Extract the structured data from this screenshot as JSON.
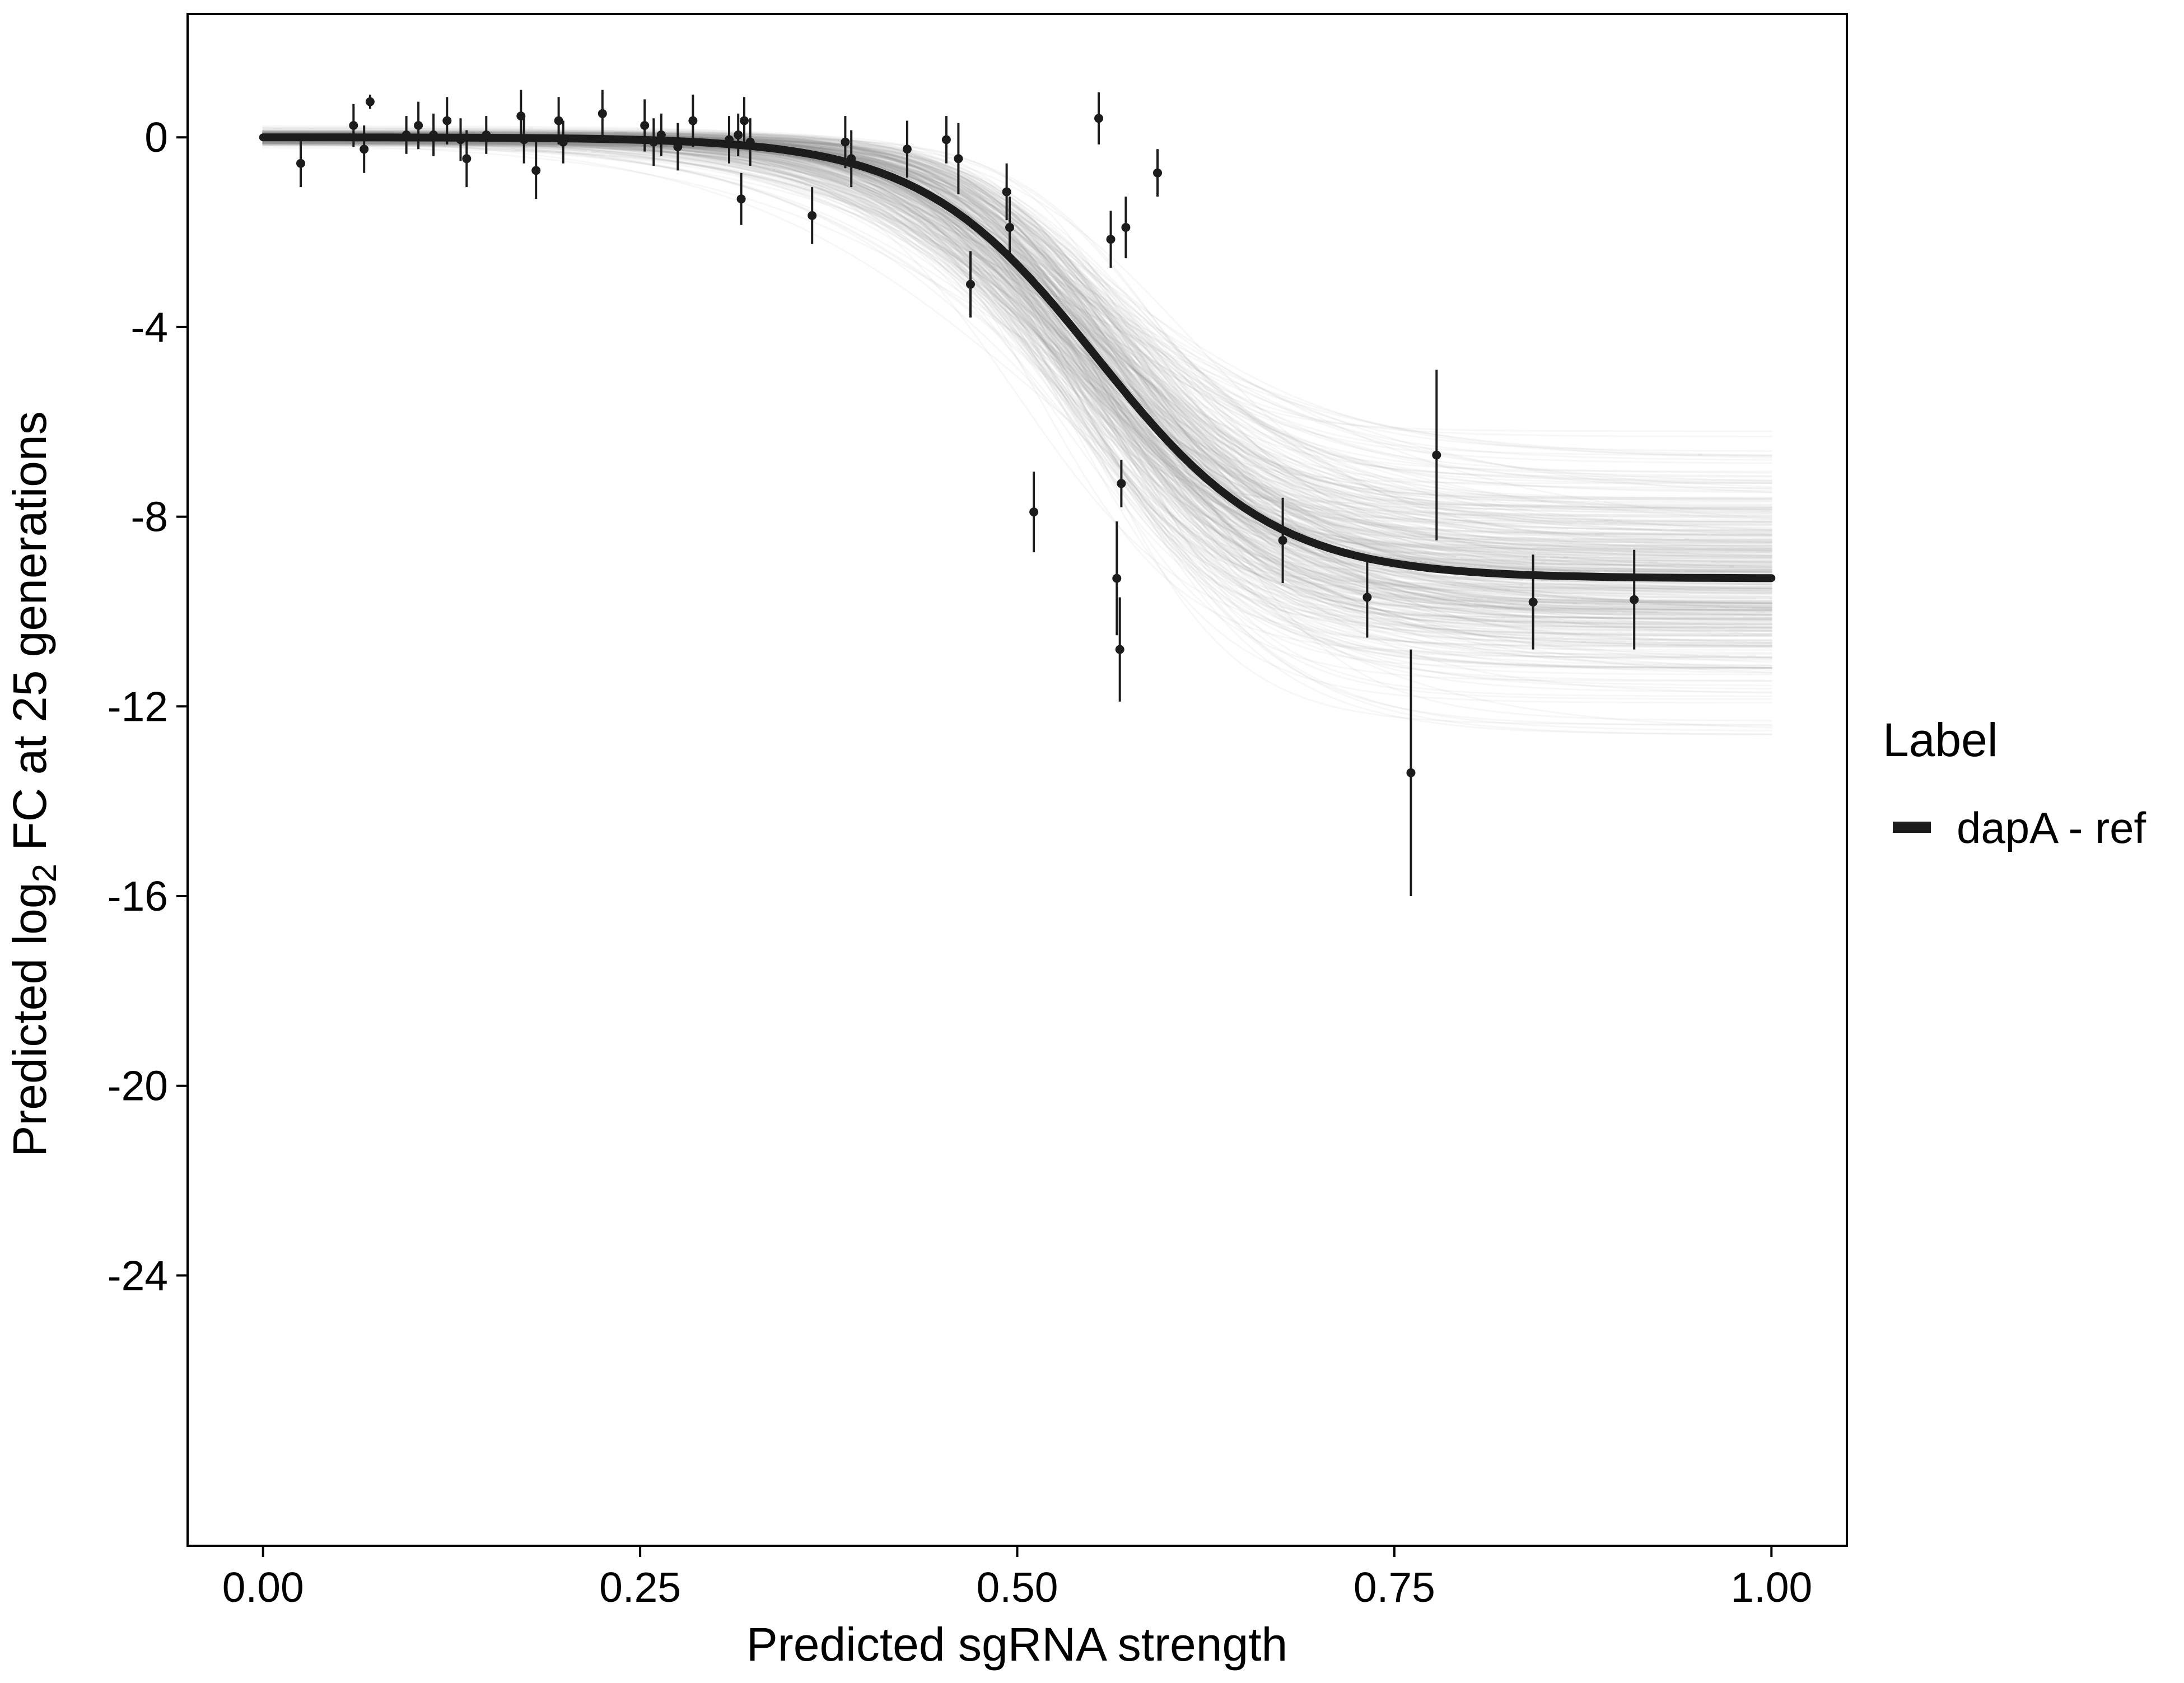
{
  "chart_data": {
    "type": "line",
    "title": "",
    "xlabel": "Predicted sgRNA strength",
    "ylabel_pre": "Predicted  log",
    "ylabel_sub": "2",
    "ylabel_post": " FC at 25 generations",
    "x_ticks": {
      "values": [
        0,
        0.25,
        0.5,
        0.75,
        1.0
      ],
      "labels": [
        "0.00",
        "0.25",
        "0.50",
        "0.75",
        "1.00"
      ]
    },
    "y_ticks": {
      "values": [
        0,
        -4,
        -8,
        -12,
        -16,
        -20,
        -24
      ],
      "labels": [
        "0",
        "-4",
        "-8",
        "-12",
        "-16",
        "-20",
        "-24"
      ]
    },
    "x_range": [
      -0.05,
      1.05
    ],
    "y_range": [
      -29.7,
      2.6
    ],
    "grid": "off",
    "legend_position": "right",
    "fit_curve": {
      "model": "sigmoid",
      "upper_asymptote": 0,
      "lower_asymptote": -9.3,
      "midpoint": 0.553,
      "slope": 17,
      "x_domain": [
        0,
        1
      ],
      "color": "#1c1c1c",
      "width": 14
    },
    "uncertainty_curves": {
      "n_curves": 400,
      "lower_asymptote_mean": -9.3,
      "lower_asymptote_sd": 1.15,
      "lower_asymptote_clamp": [
        -12.6,
        -6.2
      ],
      "midpoint_mean": 0.553,
      "midpoint_sd": 0.02,
      "slope_mean": 17,
      "slope_sd": 3.5,
      "upper_asymptote_sd": 0.07,
      "color": "#8c8c8c",
      "opacity": 0.07,
      "width": 3
    },
    "point_color": "#1c1c1c",
    "points": [
      {
        "x": 0.025,
        "y": -0.55,
        "e": 0.5
      },
      {
        "x": 0.06,
        "y": 0.25,
        "e": 0.45
      },
      {
        "x": 0.067,
        "y": -0.25,
        "e": 0.5
      },
      {
        "x": 0.071,
        "y": 0.75,
        "e": 0.15
      },
      {
        "x": 0.095,
        "y": 0.05,
        "e": 0.4
      },
      {
        "x": 0.103,
        "y": 0.25,
        "e": 0.5
      },
      {
        "x": 0.113,
        "y": 0.05,
        "e": 0.45
      },
      {
        "x": 0.122,
        "y": 0.35,
        "e": 0.5
      },
      {
        "x": 0.131,
        "y": -0.05,
        "e": 0.45
      },
      {
        "x": 0.135,
        "y": -0.45,
        "e": 0.6
      },
      {
        "x": 0.148,
        "y": 0.05,
        "e": 0.4
      },
      {
        "x": 0.171,
        "y": 0.45,
        "e": 0.55
      },
      {
        "x": 0.173,
        "y": -0.05,
        "e": 0.5
      },
      {
        "x": 0.181,
        "y": -0.7,
        "e": 0.6
      },
      {
        "x": 0.196,
        "y": 0.35,
        "e": 0.5
      },
      {
        "x": 0.199,
        "y": -0.1,
        "e": 0.45
      },
      {
        "x": 0.225,
        "y": 0.5,
        "e": 0.5
      },
      {
        "x": 0.253,
        "y": 0.25,
        "e": 0.55
      },
      {
        "x": 0.259,
        "y": -0.1,
        "e": 0.5
      },
      {
        "x": 0.264,
        "y": 0.05,
        "e": 0.45
      },
      {
        "x": 0.275,
        "y": -0.2,
        "e": 0.5
      },
      {
        "x": 0.285,
        "y": 0.35,
        "e": 0.55
      },
      {
        "x": 0.309,
        "y": -0.05,
        "e": 0.5
      },
      {
        "x": 0.315,
        "y": 0.05,
        "e": 0.45
      },
      {
        "x": 0.319,
        "y": 0.35,
        "e": 0.5
      },
      {
        "x": 0.323,
        "y": -0.1,
        "e": 0.5
      },
      {
        "x": 0.317,
        "y": -1.3,
        "e": 0.55
      },
      {
        "x": 0.364,
        "y": -1.65,
        "e": 0.6
      },
      {
        "x": 0.386,
        "y": -0.1,
        "e": 0.55
      },
      {
        "x": 0.39,
        "y": -0.45,
        "e": 0.6
      },
      {
        "x": 0.427,
        "y": -0.25,
        "e": 0.6
      },
      {
        "x": 0.453,
        "y": -0.05,
        "e": 0.5
      },
      {
        "x": 0.461,
        "y": -0.45,
        "e": 0.75
      },
      {
        "x": 0.469,
        "y": -3.1,
        "e": 0.7
      },
      {
        "x": 0.493,
        "y": -1.15,
        "e": 0.6
      },
      {
        "x": 0.495,
        "y": -1.9,
        "e": 0.65
      },
      {
        "x": 0.511,
        "y": -7.9,
        "e": 0.85
      },
      {
        "x": 0.554,
        "y": 0.4,
        "e": 0.55
      },
      {
        "x": 0.562,
        "y": -2.15,
        "e": 0.6
      },
      {
        "x": 0.572,
        "y": -1.9,
        "e": 0.65
      },
      {
        "x": 0.569,
        "y": -7.3,
        "e": 0.5
      },
      {
        "x": 0.566,
        "y": -9.3,
        "e": 1.2
      },
      {
        "x": 0.568,
        "y": -10.8,
        "e": 1.1
      },
      {
        "x": 0.593,
        "y": -0.75,
        "e": 0.5
      },
      {
        "x": 0.676,
        "y": -8.5,
        "e": 0.9
      },
      {
        "x": 0.732,
        "y": -9.7,
        "e": 0.85
      },
      {
        "x": 0.761,
        "y": -13.4,
        "e": 2.6
      },
      {
        "x": 0.778,
        "y": -6.7,
        "e": 1.8
      },
      {
        "x": 0.842,
        "y": -9.8,
        "e": 1.0
      },
      {
        "x": 0.909,
        "y": -9.75,
        "e": 1.05
      }
    ],
    "legend": {
      "title": "Label",
      "items": [
        {
          "label": "dapA - ref",
          "color": "#1c1c1c"
        }
      ]
    }
  }
}
